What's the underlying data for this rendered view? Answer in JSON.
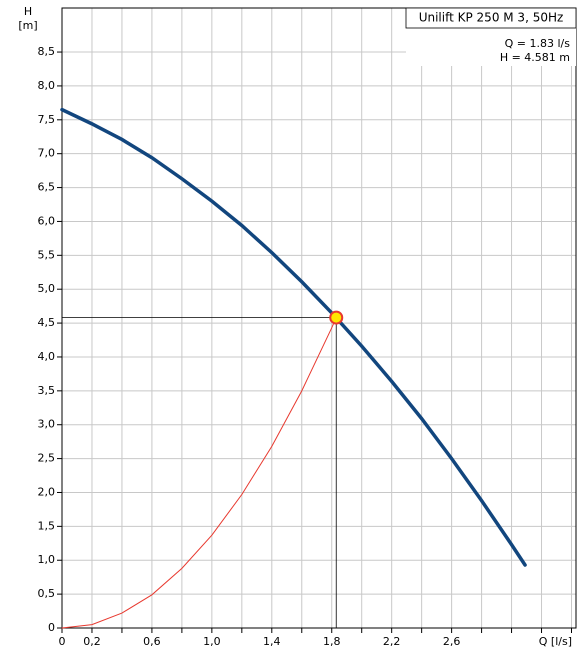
{
  "chart_data": {
    "type": "line",
    "y_label_top": "H",
    "y_label_unit": "[m]",
    "x_label": "Q [l/s]",
    "title": "Unilift KP 250 M 3, 50Hz",
    "info_lines": [
      "Q = 1.83 l/s",
      "H = 4.581 m"
    ],
    "xlim": [
      0,
      3.43
    ],
    "ylim": [
      0,
      9.15
    ],
    "xticks": [
      0,
      {
        "value": 0.2,
        "label": "0,2"
      },
      {
        "value": 0.6,
        "label": "0,6"
      },
      {
        "value": 1.0,
        "label": "1,0"
      },
      {
        "value": 1.4,
        "label": "1,4"
      },
      {
        "value": 1.8,
        "label": "1,8"
      },
      {
        "value": 2.2,
        "label": "2,2"
      },
      {
        "value": 2.6,
        "label": "2,6"
      }
    ],
    "x_minor_grid": [
      0.4,
      0.8,
      1.2,
      1.6,
      2.0,
      2.4,
      2.8,
      3.0,
      3.2,
      3.4
    ],
    "yticks": [
      0,
      {
        "value": 0.5,
        "label": "0,5"
      },
      {
        "value": 1.0,
        "label": "1,0"
      },
      {
        "value": 1.5,
        "label": "1,5"
      },
      {
        "value": 2.0,
        "label": "2,0"
      },
      {
        "value": 2.5,
        "label": "2,5"
      },
      {
        "value": 3.0,
        "label": "3,0"
      },
      {
        "value": 3.5,
        "label": "3,5"
      },
      {
        "value": 4.0,
        "label": "4,0"
      },
      {
        "value": 4.5,
        "label": "4,5"
      },
      {
        "value": 5.0,
        "label": "5,0"
      },
      {
        "value": 5.5,
        "label": "5,5"
      },
      {
        "value": 6.0,
        "label": "6,0"
      },
      {
        "value": 6.5,
        "label": "6,5"
      },
      {
        "value": 7.0,
        "label": "7,0"
      },
      {
        "value": 7.5,
        "label": "7,5"
      },
      {
        "value": 8.0,
        "label": "8,0"
      },
      {
        "value": 8.5,
        "label": "8,5"
      }
    ],
    "grid": true,
    "grid_color": "#c8c8c8",
    "series": [
      {
        "color": "#12467e",
        "width": 3.5,
        "x": [
          0,
          0.2,
          0.4,
          0.6,
          0.8,
          1.0,
          1.2,
          1.4,
          1.6,
          1.8,
          2.0,
          2.2,
          2.4,
          2.6,
          2.8,
          3.0,
          3.09
        ],
        "values": [
          7.65,
          7.44,
          7.21,
          6.94,
          6.63,
          6.3,
          5.94,
          5.54,
          5.11,
          4.65,
          4.16,
          3.64,
          3.09,
          2.5,
          1.88,
          1.23,
          0.93
        ]
      },
      {
        "color": "#e8392f",
        "width": 1,
        "x": [
          0,
          0.2,
          0.4,
          0.6,
          0.8,
          1.0,
          1.2,
          1.4,
          1.6,
          1.8,
          1.83
        ],
        "values": [
          0,
          0.05,
          0.22,
          0.49,
          0.88,
          1.37,
          1.97,
          2.68,
          3.5,
          4.43,
          4.581
        ]
      }
    ],
    "operating_point": {
      "x": 1.83,
      "y": 4.581,
      "color": "#ffe600",
      "edge_color": "#e8392f"
    }
  }
}
